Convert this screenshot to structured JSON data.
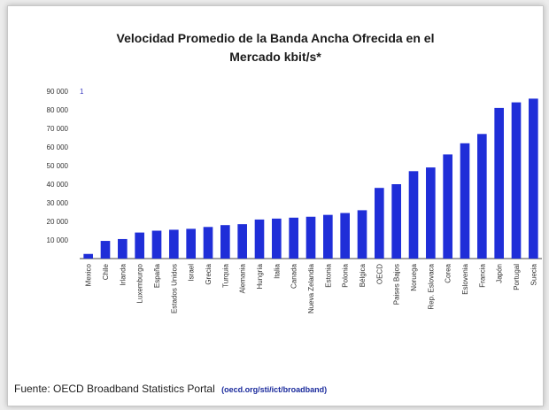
{
  "chart_data": {
    "type": "bar",
    "title_line1": "Velocidad Promedio de la Banda Ancha Ofrecida en el",
    "title_line2": "Mercado kbit/s*",
    "categories": [
      "Mexico",
      "Chile",
      "Irlanda",
      "Luxemburgo",
      "España",
      "Estados Unidos",
      "Israel",
      "Grecia",
      "Turquia",
      "Alemania",
      "Hungría",
      "Italia",
      "Canada",
      "Nueva Zelandia",
      "Estonia",
      "Polonia",
      "Bélgica",
      "OECD",
      "Paises Bajos",
      "Noruega",
      "Rep. Eslovaca",
      "Corea",
      "Eslovenia",
      "Francia",
      "Japón",
      "Portugal",
      "Suecia"
    ],
    "values": [
      2500,
      9500,
      10500,
      14000,
      15000,
      15500,
      16000,
      17000,
      18000,
      18500,
      21000,
      21500,
      22000,
      22500,
      23500,
      24500,
      26000,
      38000,
      40000,
      47000,
      49000,
      56000,
      62000,
      67000,
      81000,
      84000,
      86000
    ],
    "ylim": [
      0,
      90000
    ],
    "yticks": [
      "10 000",
      "20 000",
      "30 000",
      "40 000",
      "50 000",
      "60 000",
      "70 000",
      "80 000",
      "90 000"
    ],
    "legend_marker": "1",
    "bar_color": "#1f2ed8",
    "grid": false
  },
  "source": {
    "label": "Fuente: OECD Broadband Statistics Portal",
    "link": "(oecd.org/sti/ict/broadband)"
  }
}
